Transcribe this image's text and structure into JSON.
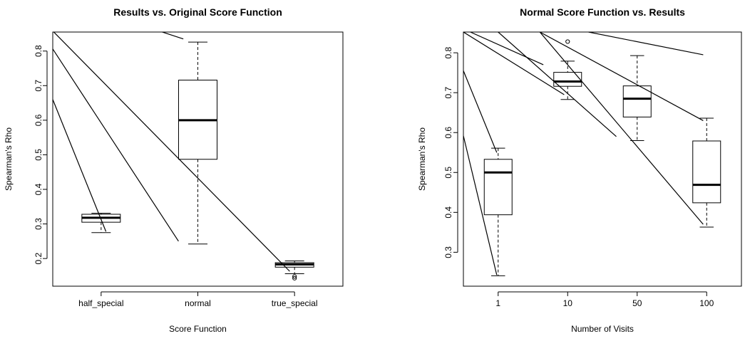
{
  "chart_data": [
    {
      "type": "box",
      "title": "Results vs. Original Score Function",
      "xlabel": "Score Function",
      "ylabel": "Spearman's Rho",
      "ylim": [
        0.12,
        0.855
      ],
      "y_ticks": [
        0.2,
        0.3,
        0.4,
        0.5,
        0.6,
        0.7,
        0.8
      ],
      "y_tick_labels": [
        "0.2",
        "0.3",
        "0.4",
        "0.5",
        "0.6",
        "0.7",
        "0.8"
      ],
      "grid": false,
      "categories": [
        "half_special",
        "normal",
        "true_special"
      ],
      "boxes": [
        {
          "category": "half_special",
          "whisker_low": 0.275,
          "q1": 0.305,
          "median": 0.318,
          "q3": 0.328,
          "whisker_high": 0.331,
          "outliers": []
        },
        {
          "category": "normal",
          "whisker_low": 0.242,
          "q1": 0.487,
          "median": 0.6,
          "q3": 0.716,
          "whisker_high": 0.826,
          "outliers": []
        },
        {
          "category": "true_special",
          "whisker_low": 0.156,
          "q1": 0.175,
          "median": 0.183,
          "q3": 0.188,
          "whisker_high": 0.193,
          "outliers": [
            0.148,
            0.143
          ]
        }
      ],
      "lines": [
        {
          "from": [
            0.5,
            0.66
          ],
          "to": [
            1.05,
            0.278
          ]
        },
        {
          "from": [
            0.5,
            0.806
          ],
          "to": [
            1.8,
            0.25
          ]
        },
        {
          "from": [
            0.5,
            0.858
          ],
          "to": [
            2.95,
            0.163
          ]
        },
        {
          "from": [
            1.6,
            0.858
          ],
          "to": [
            1.85,
            0.835
          ]
        }
      ]
    },
    {
      "type": "box",
      "title": "Normal Score Function vs. Results",
      "xlabel": "Number of Visits",
      "ylabel": "Spearman's Rho",
      "ylim": [
        0.215,
        0.852
      ],
      "y_ticks": [
        0.3,
        0.4,
        0.5,
        0.6,
        0.7,
        0.8
      ],
      "y_tick_labels": [
        "0.3",
        "0.4",
        "0.5",
        "0.6",
        "0.7",
        "0.8"
      ],
      "grid": false,
      "categories": [
        "1",
        "10",
        "50",
        "100"
      ],
      "boxes": [
        {
          "category": "1",
          "whisker_low": 0.241,
          "q1": 0.394,
          "median": 0.5,
          "q3": 0.533,
          "whisker_high": 0.561,
          "outliers": []
        },
        {
          "category": "10",
          "whisker_low": 0.683,
          "q1": 0.716,
          "median": 0.728,
          "q3": 0.751,
          "whisker_high": 0.779,
          "outliers": [
            0.828
          ]
        },
        {
          "category": "50",
          "whisker_low": 0.58,
          "q1": 0.639,
          "median": 0.685,
          "q3": 0.717,
          "whisker_high": 0.793,
          "outliers": []
        },
        {
          "category": "100",
          "whisker_low": 0.363,
          "q1": 0.424,
          "median": 0.469,
          "q3": 0.579,
          "whisker_high": 0.636,
          "outliers": []
        }
      ],
      "lines": [
        {
          "from": [
            0.5,
            0.755
          ],
          "to": [
            0.98,
            0.55
          ]
        },
        {
          "from": [
            0.5,
            0.592
          ],
          "to": [
            0.98,
            0.243
          ]
        },
        {
          "from": [
            0.6,
            0.852
          ],
          "to": [
            1.65,
            0.77
          ]
        },
        {
          "from": [
            0.5,
            0.852
          ],
          "to": [
            1.95,
            0.695
          ]
        },
        {
          "from": [
            1.0,
            0.852
          ],
          "to": [
            2.7,
            0.59
          ]
        },
        {
          "from": [
            1.6,
            0.852
          ],
          "to": [
            3.95,
            0.37
          ]
        },
        {
          "from": [
            1.6,
            0.852
          ],
          "to": [
            3.95,
            0.63
          ]
        },
        {
          "from": [
            2.3,
            0.852
          ],
          "to": [
            3.95,
            0.795
          ]
        }
      ]
    }
  ]
}
